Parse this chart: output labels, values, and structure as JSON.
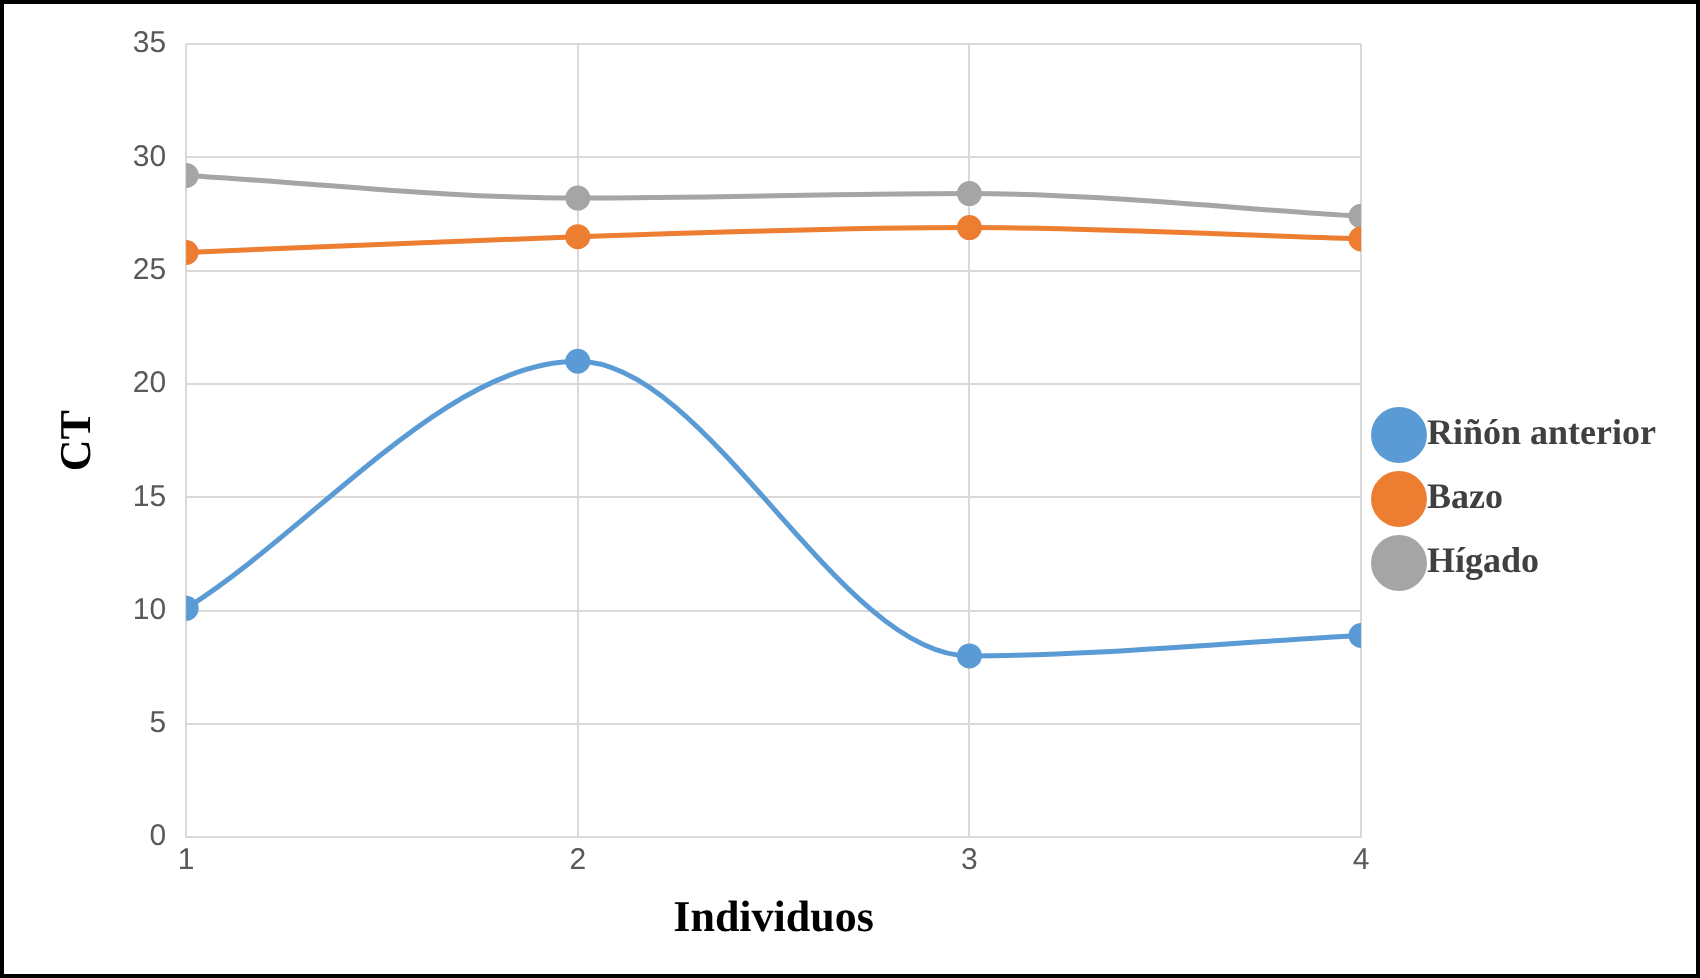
{
  "chart_data": {
    "type": "line",
    "xlabel": "Individuos",
    "ylabel": "CT",
    "x": [
      1,
      2,
      3,
      4
    ],
    "xlim": [
      1,
      4
    ],
    "xticks": [
      1,
      2,
      3,
      4
    ],
    "ylim": [
      0,
      35
    ],
    "yticks": [
      0,
      5,
      10,
      15,
      20,
      25,
      30,
      35
    ],
    "grid": true,
    "legend": "right",
    "marker": "circle",
    "series": [
      {
        "name": "Riñón anterior",
        "color": "#5b9bd5",
        "values": [
          10.1,
          21.0,
          8.0,
          8.9
        ]
      },
      {
        "name": "Bazo",
        "color": "#ed7d31",
        "values": [
          25.8,
          26.5,
          26.9,
          26.4
        ]
      },
      {
        "name": "Hígado",
        "color": "#a5a5a5",
        "values": [
          29.2,
          28.2,
          28.4,
          27.4
        ]
      }
    ]
  }
}
